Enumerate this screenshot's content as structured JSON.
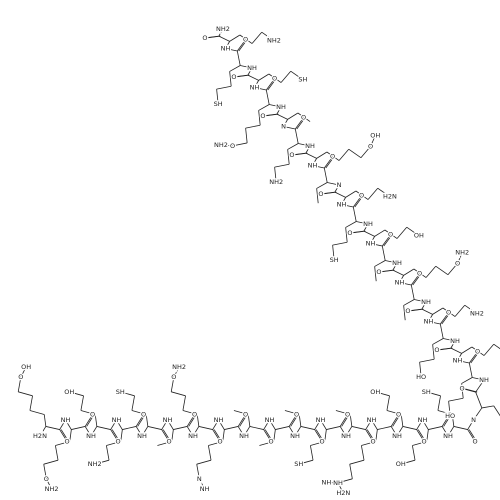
{
  "molecule": {
    "residues": [
      {
        "n": "H2N",
        "o": "O",
        "side": [
          "O",
          "OH"
        ]
      },
      {
        "n": "NH",
        "o": "O",
        "side": [
          "O",
          "NH2"
        ]
      },
      {
        "n": "NH",
        "o": "O",
        "side": [
          "OH"
        ]
      },
      {
        "n": "NH",
        "o": "O",
        "side": [
          "NH2"
        ]
      },
      {
        "n": "NH",
        "o": "O",
        "side": [
          "SH"
        ]
      },
      {
        "n": "NH",
        "o": "O",
        "side": []
      },
      {
        "n": "NH",
        "o": "O",
        "side": [
          "O",
          "NH2"
        ]
      },
      {
        "n": "NH",
        "o": "O",
        "side": [
          "N",
          "NH"
        ]
      },
      {
        "n": "NH",
        "o": "O",
        "side": []
      },
      {
        "n": "NH",
        "o": "O",
        "side": []
      },
      {
        "n": "NH",
        "o": "O",
        "side": []
      },
      {
        "n": "NH",
        "o": "O",
        "side": [
          "SH"
        ]
      },
      {
        "n": "NH",
        "o": "O",
        "side": []
      },
      {
        "n": "NH",
        "o": "O",
        "side": [
          "NH",
          "H2N",
          "NH"
        ]
      },
      {
        "n": "NH",
        "o": "O",
        "side": [
          "OH"
        ]
      },
      {
        "n": "NH",
        "o": "O",
        "side": [
          "OH"
        ]
      },
      {
        "n": "NH",
        "o": "O",
        "side": [
          "SH"
        ]
      },
      {
        "n": "N",
        "o": "O",
        "side": []
      },
      {
        "n": "NH",
        "o": "O",
        "side": [
          "HO"
        ]
      },
      {
        "n": "NH",
        "o": "O",
        "side": [
          "O",
          "NH2"
        ]
      },
      {
        "n": "NH",
        "o": "O",
        "side": [
          "HO"
        ]
      },
      {
        "n": "NH",
        "o": "O",
        "side": [
          "NH2"
        ]
      },
      {
        "n": "NH",
        "o": "O",
        "side": []
      },
      {
        "n": "NH",
        "o": "O",
        "side": [
          "O",
          "NH2"
        ]
      },
      {
        "n": "NH",
        "o": "O",
        "side": []
      },
      {
        "n": "NH",
        "o": "O",
        "side": [
          "OH"
        ]
      },
      {
        "n": "NH",
        "o": "O",
        "side": [
          "SH"
        ]
      },
      {
        "n": "NH",
        "o": "O",
        "side": [
          "H2N"
        ]
      },
      {
        "n": "N",
        "o": "O",
        "side": []
      },
      {
        "n": "NH",
        "o": "O",
        "side": [
          "O",
          "OH"
        ]
      },
      {
        "n": "NH",
        "o": "O",
        "side": [
          "NH2"
        ]
      },
      {
        "n": "N",
        "o": "O",
        "side": []
      },
      {
        "n": "NH",
        "o": "O",
        "side": [
          "O",
          "NH2"
        ]
      },
      {
        "n": "NH",
        "o": "O",
        "side": [
          "SH"
        ]
      },
      {
        "n": "NH",
        "o": "O",
        "side": [
          "SH"
        ]
      },
      {
        "n": "NH",
        "o": "O",
        "side": [
          "NH2"
        ]
      }
    ],
    "c_terminus": "NH2"
  }
}
